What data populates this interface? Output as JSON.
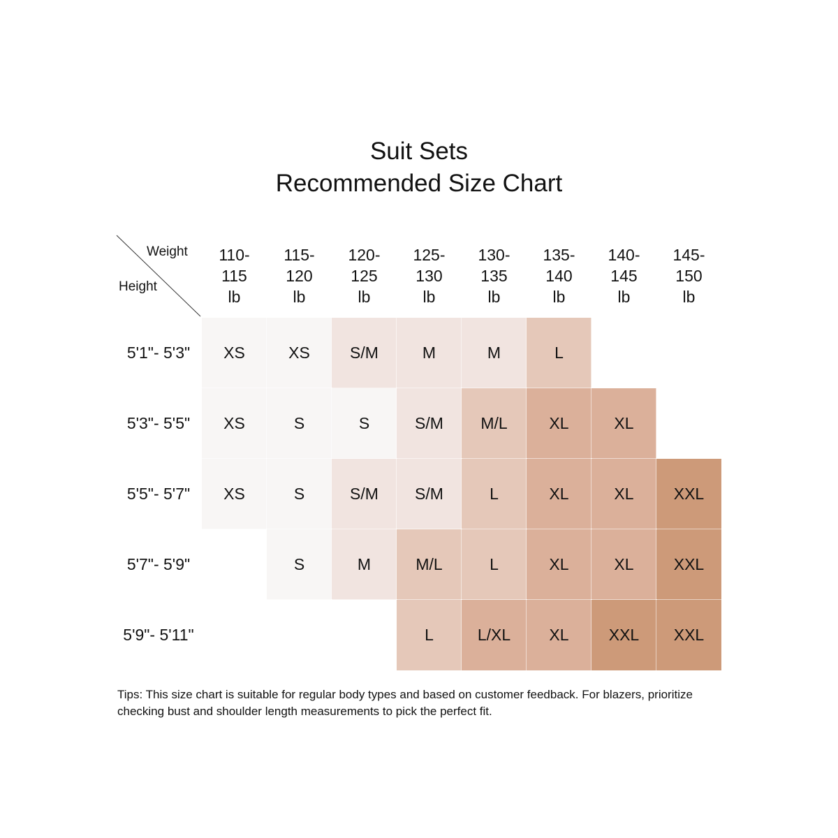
{
  "title_line1": "Suit Sets",
  "title_line2": "Recommended Size Chart",
  "tips": "Tips: This size chart is suitable for regular body types and based on customer feedback. For blazers, prioritize checking bust and shoulder length measurements to pick the perfect fit.",
  "palette": {
    "XS": "#f8f6f5",
    "S": "#f8f6f5",
    "S/M": "#f1e4e0",
    "M": "#f1e4e0",
    "M/L": "#e5c8b9",
    "L": "#e5c8b9",
    "L/XL": "#dbb09a",
    "XL": "#dbb09a",
    "XXL": "#cd9a79"
  },
  "chart_data": {
    "type": "table",
    "title": "Suit Sets\nRecommended Size Chart",
    "corner_labels": {
      "column_axis": "Weight",
      "row_axis": "Height"
    },
    "columns": [
      "110-\n115\nlb",
      "115-\n120\nlb",
      "120-\n125\nlb",
      "125-\n130\nlb",
      "130-\n135\nlb",
      "135-\n140\nlb",
      "140-\n145\nlb",
      "145-\n150\nlb"
    ],
    "rows": [
      "5'1\"- 5'3\"",
      "5'3\"- 5'5\"",
      "5'5\"- 5'7\"",
      "5'7\"- 5'9\"",
      "5'9\"- 5'11\""
    ],
    "cells": [
      [
        "XS",
        "XS",
        "S/M",
        "M",
        "M",
        "L",
        "",
        ""
      ],
      [
        "XS",
        "S",
        "S",
        "S/M",
        "M/L",
        "XL",
        "XL",
        ""
      ],
      [
        "XS",
        "S",
        "S/M",
        "S/M",
        "L",
        "XL",
        "XL",
        "XXL"
      ],
      [
        "",
        "S",
        "M",
        "M/L",
        "L",
        "XL",
        "XL",
        "XXL"
      ],
      [
        "",
        "",
        "",
        "L",
        "L/XL",
        "XL",
        "XXL",
        "XXL"
      ]
    ]
  }
}
